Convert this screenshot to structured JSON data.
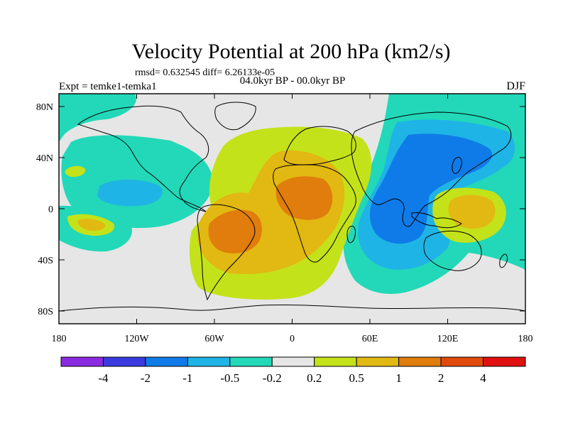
{
  "title": "Velocity Potential at 200 hPa (km2/s)",
  "stats": "rmsd= 0.632545  diff= 6.26133e-05",
  "left_label": "Expt = temke1-temka1",
  "center_label": "04.0kyr BP - 00.0kyr BP",
  "right_label": "DJF",
  "lat_ticks": [
    {
      "label": "80N"
    },
    {
      "label": "40N"
    },
    {
      "label": "0"
    },
    {
      "label": "40S"
    },
    {
      "label": "80S"
    }
  ],
  "lon_ticks": [
    {
      "label": "180"
    },
    {
      "label": "120W"
    },
    {
      "label": "60W"
    },
    {
      "label": "0"
    },
    {
      "label": "60E"
    },
    {
      "label": "120E"
    },
    {
      "label": "180"
    }
  ],
  "colorbar": {
    "colors": [
      "#8a2be2",
      "#3a3adf",
      "#0f7be8",
      "#1fb4e6",
      "#22d8b8",
      "#e6e6e6",
      "#c4e21a",
      "#e2b812",
      "#e07d0c",
      "#e04a0c",
      "#e01010"
    ],
    "labels": [
      "-4",
      "-2",
      "-1",
      "-0.5",
      "-0.2",
      "0.2",
      "0.5",
      "1",
      "2",
      "4"
    ]
  },
  "palette": {
    "neutral": "#e6e6e6",
    "neg_weak": "#22d8b8",
    "neg_mid": "#1fb4e6",
    "neg_strong": "#0f7be8",
    "pos_weak": "#c4e21a",
    "pos_mid": "#e2b812",
    "pos_strong": "#e07d0c"
  }
}
